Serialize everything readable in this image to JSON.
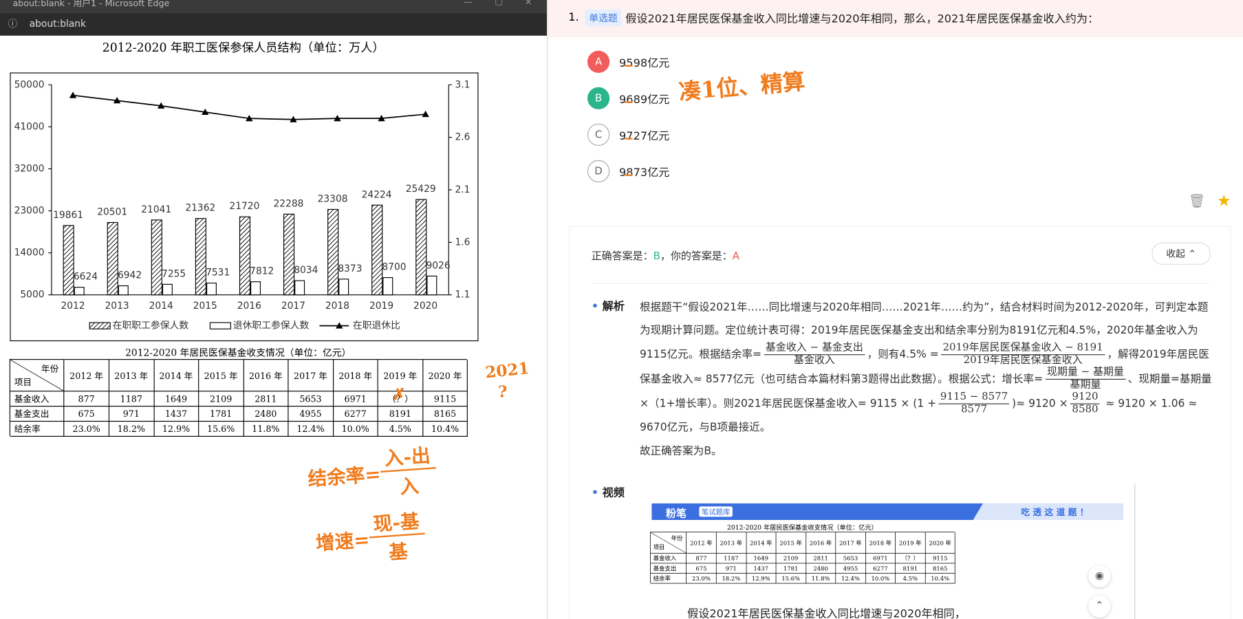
{
  "window": {
    "title": "about:blank - 用户1 - Microsoft Edge",
    "address": "about:blank"
  },
  "chart_data": {
    "type": "bar",
    "title": "2012-2020 年职工医保参保人员结构（单位：万人）",
    "categories": [
      "2012",
      "2013",
      "2014",
      "2015",
      "2016",
      "2017",
      "2018",
      "2019",
      "2020"
    ],
    "series": [
      {
        "name": "在职职工参保人数",
        "color": "#000000",
        "fill_pattern": "hatch",
        "values": [
          19861,
          20501,
          21041,
          21362,
          21720,
          22288,
          23308,
          24224,
          25429
        ]
      },
      {
        "name": "退休职工参保人数",
        "color": "#000000",
        "fill_pattern": "none",
        "values": [
          6624,
          6942,
          7255,
          7531,
          7812,
          8034,
          8373,
          8700,
          9026
        ]
      },
      {
        "name": "在职退休比",
        "type": "line",
        "axis": "y2",
        "color": "#000000",
        "values": [
          3.0,
          2.95,
          2.9,
          2.84,
          2.78,
          2.77,
          2.78,
          2.78,
          2.82
        ]
      }
    ],
    "ylim": [
      5000,
      50000
    ],
    "yticks": [
      5000,
      14000,
      23000,
      32000,
      41000,
      50000
    ],
    "y2lim": [
      1.1,
      3.1
    ],
    "y2ticks": [
      1.1,
      1.6,
      2.1,
      2.6,
      3.1
    ],
    "legend": "bottom",
    "grid": false
  },
  "table": {
    "title": "2012-2020 年居民医保基金收支情况（单位：亿元）",
    "corner": [
      "年份",
      "项目"
    ],
    "columns": [
      "2012 年",
      "2013 年",
      "2014 年",
      "2015 年",
      "2016 年",
      "2017 年",
      "2018 年",
      "2019 年",
      "2020 年"
    ],
    "rows": [
      [
        "基金收入",
        "877",
        "1187",
        "1649",
        "2109",
        "2811",
        "5653",
        "6971",
        "（？）",
        "9115"
      ],
      [
        "基金支出",
        "675",
        "971",
        "1437",
        "1781",
        "2480",
        "4955",
        "6277",
        "8191",
        "8165"
      ],
      [
        "结余率",
        "23.0%",
        "18.2%",
        "12.9%",
        "15.6%",
        "11.8%",
        "12.4%",
        "10.0%",
        "4.5%",
        "10.4%"
      ]
    ]
  },
  "question": {
    "number": "1.",
    "type": "单选题",
    "text": "假设2021年居民医保基金收入同比增速与2020年相同，那么，2021年居民医保基金收入约为：",
    "options": [
      {
        "letter": "A",
        "text": "9598亿元"
      },
      {
        "letter": "B",
        "text": "9689亿元"
      },
      {
        "letter": "C",
        "text": "9727亿元"
      },
      {
        "letter": "D",
        "text": "9873亿元"
      }
    ]
  },
  "answer": {
    "correct_label": "正确答案是：",
    "correct": "B",
    "yours_label": "，你的答案是：",
    "yours": "A",
    "collapse": "收起"
  },
  "analysis": {
    "label": "解析",
    "parts": [
      "根据题干“假设2021年……同比增速与2020年相同……2021年……约为”，结合材料时间为2012-2020年，可判定本题为现期计算问题。定位统计表可得：2019年居民医保基金支出和结余率分别为8191亿元和4.5%，2020年基金收入为9115亿元。根据结余率=",
      {
        "num": "基金收入 − 基金支出",
        "den": "基金收入"
      },
      "，则有4.5% =",
      {
        "num": "2019年居民医保基金收入 − 8191",
        "den": "2019年居民医保基金收入"
      },
      "，解得2019年居民医保基金收入≈ 8577亿元（也可结合本篇材料第3题得出此数据）。根据公式：增长率=",
      {
        "num": "现期量 − 基期量",
        "den": "基期量"
      },
      "、现期量=基期量×（1+增长率）。则2021年居民医保基金收入= 9115 × (1 +",
      {
        "num": "9115 − 8577",
        "den": "8577"
      },
      ")≈ 9120 ×",
      {
        "num": "9120",
        "den": "8580"
      },
      " ≈ 9120 × 1.06 ≈ 9670亿元，与B项最接近。"
    ],
    "conclusion": "故正确答案为B。"
  },
  "video": {
    "label": "视频",
    "brand": "粉笔",
    "brand_tag": "笔试题库",
    "slogan": "吃 透 这 道 题 ！",
    "caption": "假设2021年居民医保基金收入同比增速与2020年相同，"
  },
  "handwriting": {
    "note": "凑1位、精算",
    "year": "2021",
    "mark": "?",
    "formulas": [
      {
        "lhs": "结余率=",
        "num": "入-出",
        "den": "入"
      },
      {
        "lhs": "增速=",
        "num": "现-基",
        "den": "基"
      }
    ]
  }
}
